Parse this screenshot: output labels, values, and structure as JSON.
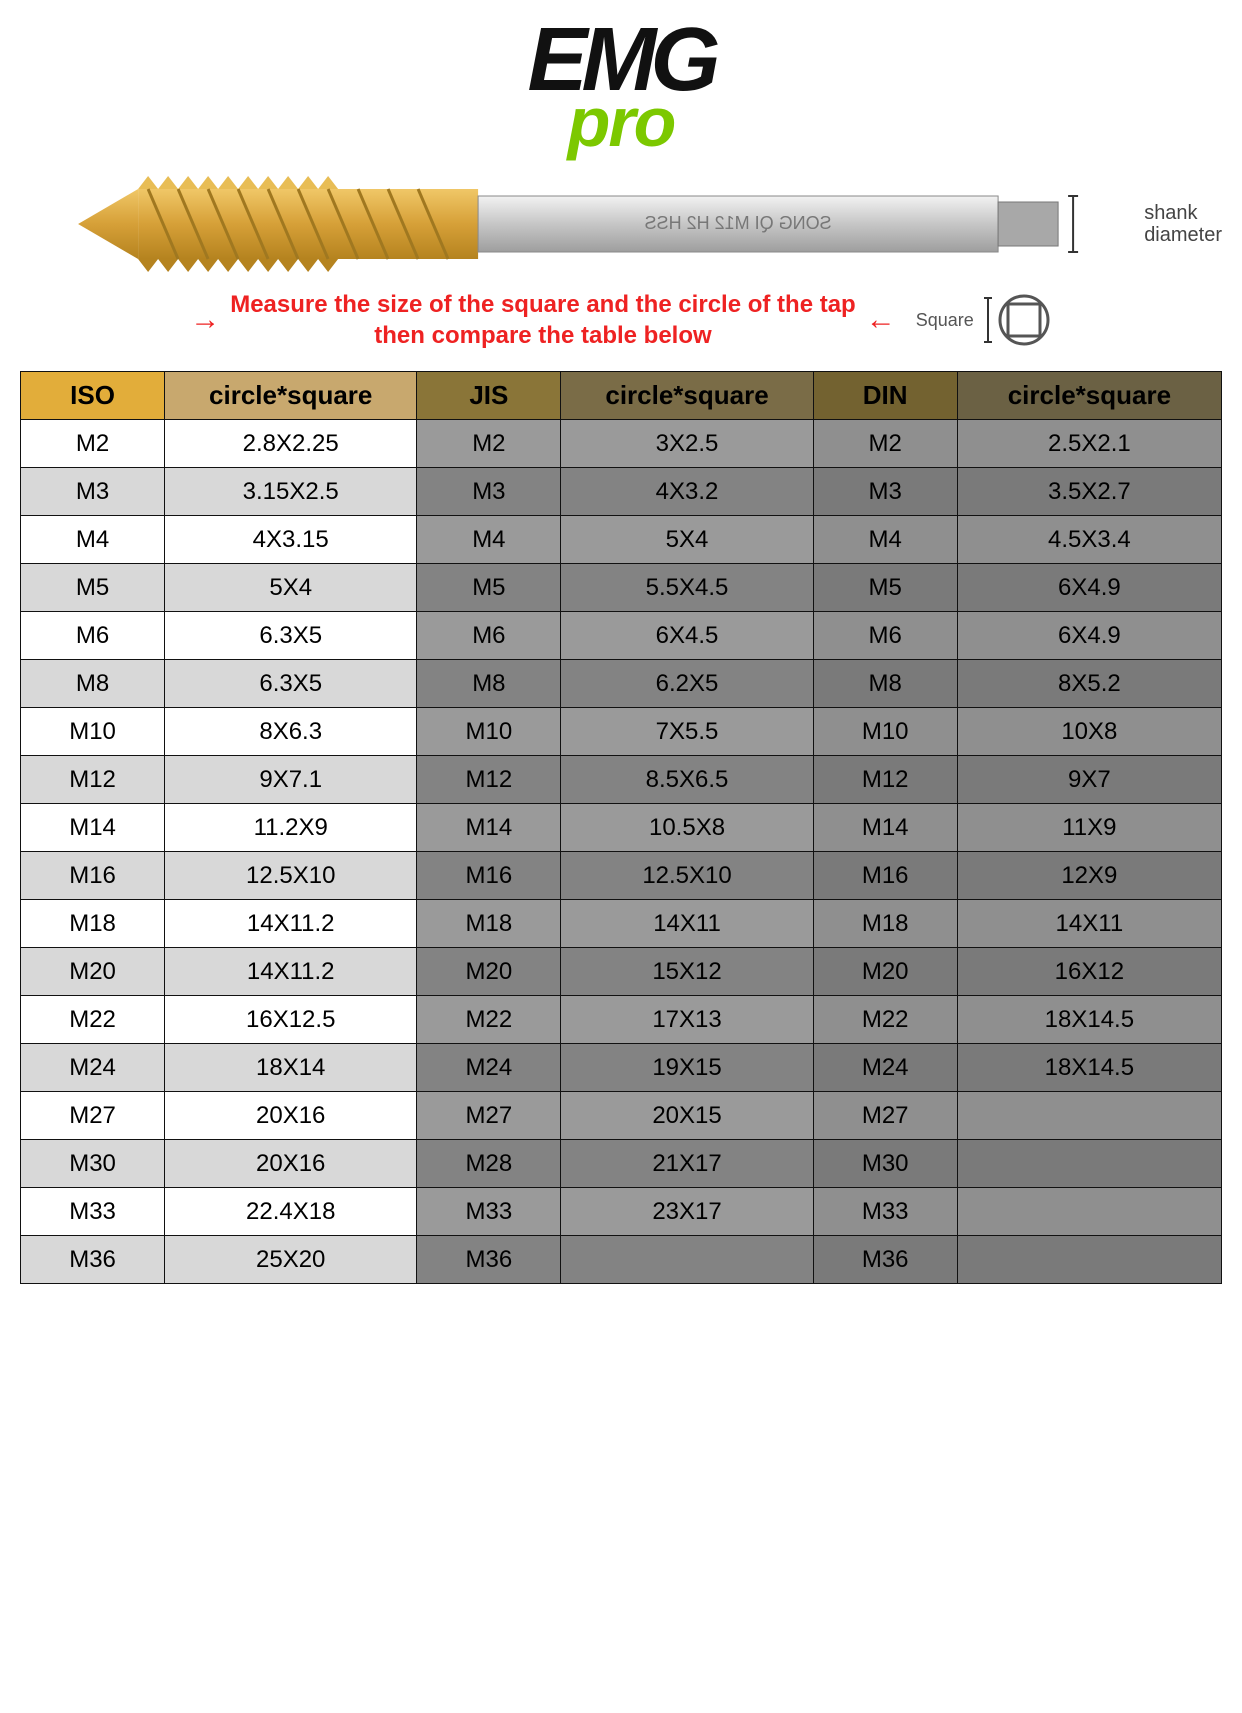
{
  "logo": {
    "line1": "EMG",
    "line2": "pro"
  },
  "tap_image": {
    "shank_label": "shank\ndiameter",
    "shank_text": "SONG QI M12 H2 HSS",
    "thread_color": "#d6a038",
    "thread_tip_color": "#c8902a",
    "shank_color": "#c6c6c6",
    "shank_end_color": "#9e9e9e"
  },
  "instruction": {
    "text": "Measure the size of the square and the circle of the tap\nthen compare the table below",
    "square_label": "Square"
  },
  "table": {
    "headers": [
      {
        "label": "ISO",
        "sub": "circle*square",
        "hclass": "col-iso-h",
        "sclass": "col-iso-h2"
      },
      {
        "label": "JIS",
        "sub": "circle*square",
        "hclass": "col-jis-h",
        "sclass": "col-jis-h2"
      },
      {
        "label": "DIN",
        "sub": "circle*square",
        "hclass": "col-din-h",
        "sclass": "col-din-h2"
      }
    ],
    "col_widths_pct": [
      12,
      21,
      12,
      21,
      12,
      22
    ],
    "row_shade_classes": {
      "iso": {
        "light": "c-iso-light",
        "dark": "c-iso-dark"
      },
      "jis": {
        "light": "c-jis-light",
        "dark": "c-jis-dark"
      },
      "din": {
        "light": "c-din-light",
        "dark": "c-din-dark"
      }
    },
    "rows": [
      {
        "iso": "M2",
        "iso_cs": "2.8X2.25",
        "jis": "M2",
        "jis_cs": "3X2.5",
        "din": "M2",
        "din_cs": "2.5X2.1"
      },
      {
        "iso": "M3",
        "iso_cs": "3.15X2.5",
        "jis": "M3",
        "jis_cs": "4X3.2",
        "din": "M3",
        "din_cs": "3.5X2.7"
      },
      {
        "iso": "M4",
        "iso_cs": "4X3.15",
        "jis": "M4",
        "jis_cs": "5X4",
        "din": "M4",
        "din_cs": "4.5X3.4"
      },
      {
        "iso": "M5",
        "iso_cs": "5X4",
        "jis": "M5",
        "jis_cs": "5.5X4.5",
        "din": "M5",
        "din_cs": "6X4.9"
      },
      {
        "iso": "M6",
        "iso_cs": "6.3X5",
        "jis": "M6",
        "jis_cs": "6X4.5",
        "din": "M6",
        "din_cs": "6X4.9"
      },
      {
        "iso": "M8",
        "iso_cs": "6.3X5",
        "jis": "M8",
        "jis_cs": "6.2X5",
        "din": "M8",
        "din_cs": "8X5.2"
      },
      {
        "iso": "M10",
        "iso_cs": "8X6.3",
        "jis": "M10",
        "jis_cs": "7X5.5",
        "din": "M10",
        "din_cs": "10X8"
      },
      {
        "iso": "M12",
        "iso_cs": "9X7.1",
        "jis": "M12",
        "jis_cs": "8.5X6.5",
        "din": "M12",
        "din_cs": "9X7"
      },
      {
        "iso": "M14",
        "iso_cs": "11.2X9",
        "jis": "M14",
        "jis_cs": "10.5X8",
        "din": "M14",
        "din_cs": "11X9"
      },
      {
        "iso": "M16",
        "iso_cs": "12.5X10",
        "jis": "M16",
        "jis_cs": "12.5X10",
        "din": "M16",
        "din_cs": "12X9"
      },
      {
        "iso": "M18",
        "iso_cs": "14X11.2",
        "jis": "M18",
        "jis_cs": "14X11",
        "din": "M18",
        "din_cs": "14X11"
      },
      {
        "iso": "M20",
        "iso_cs": "14X11.2",
        "jis": "M20",
        "jis_cs": "15X12",
        "din": "M20",
        "din_cs": "16X12"
      },
      {
        "iso": "M22",
        "iso_cs": "16X12.5",
        "jis": "M22",
        "jis_cs": "17X13",
        "din": "M22",
        "din_cs": "18X14.5"
      },
      {
        "iso": "M24",
        "iso_cs": "18X14",
        "jis": "M24",
        "jis_cs": "19X15",
        "din": "M24",
        "din_cs": "18X14.5"
      },
      {
        "iso": "M27",
        "iso_cs": "20X16",
        "jis": "M27",
        "jis_cs": "20X15",
        "din": "M27",
        "din_cs": ""
      },
      {
        "iso": "M30",
        "iso_cs": "20X16",
        "jis": "M28",
        "jis_cs": "21X17",
        "din": "M30",
        "din_cs": ""
      },
      {
        "iso": "M33",
        "iso_cs": "22.4X18",
        "jis": "M33",
        "jis_cs": "23X17",
        "din": "M33",
        "din_cs": ""
      },
      {
        "iso": "M36",
        "iso_cs": "25X20",
        "jis": "M36",
        "jis_cs": "",
        "din": "M36",
        "din_cs": ""
      }
    ]
  }
}
